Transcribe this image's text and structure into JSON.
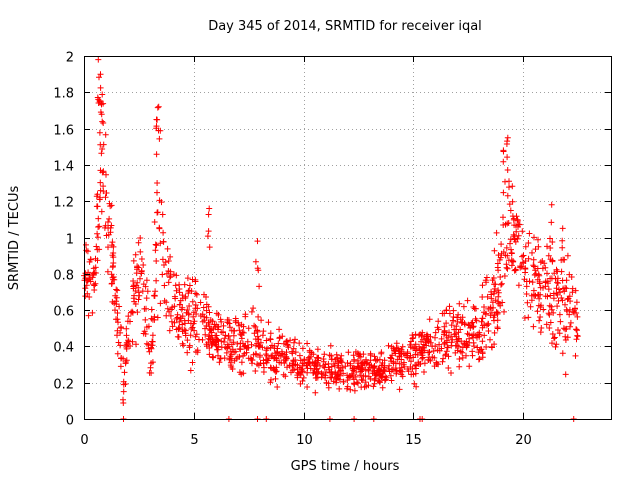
{
  "chart_data": {
    "type": "scatter",
    "title": "Day 345 of 2014, SRMTID for receiver iqal",
    "xlabel": "GPS time / hours",
    "ylabel": "SRMTID / TECUs",
    "xlim": [
      0,
      24
    ],
    "ylim": [
      0,
      2
    ],
    "xticks": [
      0,
      5,
      10,
      15,
      20
    ],
    "xtick_labels": [
      "0",
      "5",
      "10",
      "15",
      "20"
    ],
    "yticks": [
      0,
      0.2,
      0.4,
      0.6,
      0.8,
      1,
      1.2,
      1.4,
      1.6,
      1.8,
      2
    ],
    "ytick_labels": [
      "0",
      "0.2",
      "0.4",
      "0.6",
      "0.8",
      "1",
      "1.2",
      "1.4",
      "1.6",
      "1.8",
      "2"
    ],
    "grid": true,
    "marker": "+",
    "color": "#ff0000",
    "series": [
      {
        "name": "SRMTID",
        "envelope": [
          {
            "x": 0.0,
            "y": 0.75,
            "spread": 0.2
          },
          {
            "x": 0.5,
            "y": 0.8,
            "spread": 0.25
          },
          {
            "x": 0.8,
            "y": 1.5,
            "spread": 0.45
          },
          {
            "x": 1.1,
            "y": 1.1,
            "spread": 0.35
          },
          {
            "x": 1.5,
            "y": 0.55,
            "spread": 0.2
          },
          {
            "x": 1.8,
            "y": 0.25,
            "spread": 0.2
          },
          {
            "x": 2.2,
            "y": 0.6,
            "spread": 0.25
          },
          {
            "x": 2.6,
            "y": 0.85,
            "spread": 0.3
          },
          {
            "x": 3.0,
            "y": 0.35,
            "spread": 0.25
          },
          {
            "x": 3.4,
            "y": 1.1,
            "spread": 0.5
          },
          {
            "x": 4.0,
            "y": 0.6,
            "spread": 0.25
          },
          {
            "x": 5.0,
            "y": 0.55,
            "spread": 0.25
          },
          {
            "x": 6.0,
            "y": 0.45,
            "spread": 0.2
          },
          {
            "x": 8.0,
            "y": 0.4,
            "spread": 0.2
          },
          {
            "x": 10.0,
            "y": 0.3,
            "spread": 0.12
          },
          {
            "x": 12.0,
            "y": 0.27,
            "spread": 0.12
          },
          {
            "x": 13.5,
            "y": 0.28,
            "spread": 0.12
          },
          {
            "x": 15.0,
            "y": 0.35,
            "spread": 0.15
          },
          {
            "x": 16.5,
            "y": 0.45,
            "spread": 0.18
          },
          {
            "x": 18.0,
            "y": 0.45,
            "spread": 0.2
          },
          {
            "x": 19.0,
            "y": 0.75,
            "spread": 0.35
          },
          {
            "x": 19.4,
            "y": 1.1,
            "spread": 0.4
          },
          {
            "x": 20.0,
            "y": 0.8,
            "spread": 0.25
          },
          {
            "x": 21.0,
            "y": 0.7,
            "spread": 0.3
          },
          {
            "x": 21.8,
            "y": 0.65,
            "spread": 0.35
          },
          {
            "x": 22.5,
            "y": 0.5,
            "spread": 0.2
          }
        ],
        "peaks": [
          {
            "x": 0.65,
            "y": 1.98
          },
          {
            "x": 0.75,
            "y": 1.9
          },
          {
            "x": 0.72,
            "y": 1.75
          },
          {
            "x": 3.4,
            "y": 1.72
          },
          {
            "x": 3.3,
            "y": 1.65
          },
          {
            "x": 19.3,
            "y": 1.55
          },
          {
            "x": 19.1,
            "y": 1.48
          },
          {
            "x": 21.3,
            "y": 1.18
          },
          {
            "x": 21.8,
            "y": 1.05
          },
          {
            "x": 5.7,
            "y": 1.16
          },
          {
            "x": 7.9,
            "y": 0.98
          }
        ],
        "zeros": [
          1.8,
          6.6,
          7.9,
          8.3,
          11.2,
          12.3,
          13.2,
          15.3,
          15.4,
          22.3
        ]
      }
    ]
  }
}
